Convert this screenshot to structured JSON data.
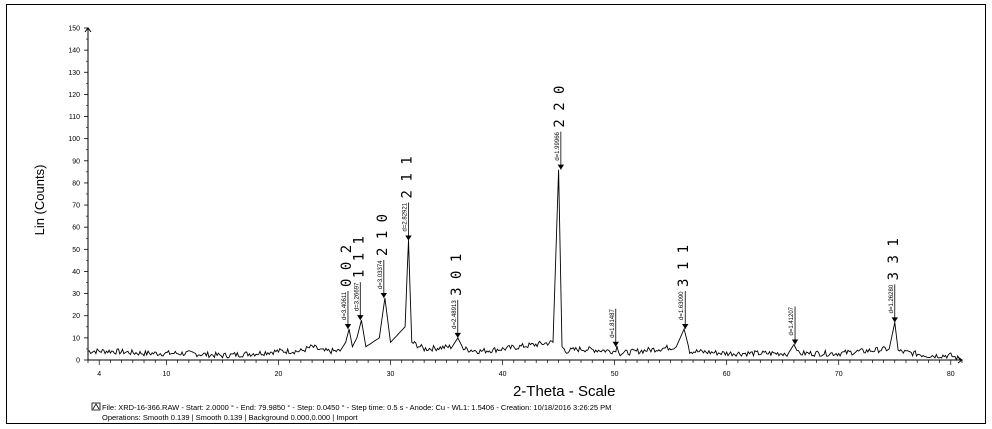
{
  "chart_data": {
    "type": "line",
    "xlabel": "2-Theta - Scale",
    "ylabel": "Lin (Counts)",
    "xlim": [
      3,
      81
    ],
    "ylim": [
      0,
      150
    ],
    "x_ticks": [
      4,
      10,
      20,
      30,
      40,
      50,
      60,
      70,
      80
    ],
    "y_ticks": [
      0,
      10,
      20,
      30,
      40,
      50,
      60,
      70,
      80,
      90,
      100,
      110,
      120,
      130,
      140,
      150
    ],
    "baseline": 3,
    "series": [
      {
        "x": [
          3.0,
          5.0,
          8.0,
          12.0,
          15.0,
          18.0,
          20.0,
          22.0,
          23.0,
          24.0,
          25.5,
          26.0,
          26.3,
          26.6,
          27.0,
          27.4,
          27.8,
          29.0,
          29.5,
          30.0,
          31.3,
          31.6,
          31.9,
          33.0,
          35.5,
          36.0,
          36.5,
          38.0,
          40.0,
          44.5,
          45.0,
          45.3,
          45.6,
          47.0,
          50.0,
          50.2,
          50.5,
          55.5,
          56.2,
          56.7,
          60.0,
          65.5,
          66.0,
          66.4,
          70.0,
          74.5,
          75.0,
          75.3,
          78.0,
          80.0,
          81.0
        ],
        "y": [
          4,
          4,
          3,
          3,
          2,
          3,
          4,
          4,
          6,
          4,
          4,
          8,
          14,
          6,
          10,
          18,
          6,
          10,
          28,
          8,
          15,
          54,
          8,
          5,
          6,
          10,
          5,
          4,
          5,
          8,
          86,
          6,
          4,
          5,
          4,
          6,
          3,
          6,
          14,
          4,
          3,
          3,
          7,
          3,
          3,
          5,
          17,
          4,
          2,
          2,
          0
        ]
      }
    ],
    "peaks": [
      {
        "hkl": "0 0 2",
        "two_theta": 26.2,
        "counts": 14,
        "d": "d=3.40611"
      },
      {
        "hkl": "1 1 1",
        "two_theta": 27.3,
        "counts": 18,
        "d": "d=3.26697"
      },
      {
        "hkl": "2 1 0",
        "two_theta": 29.4,
        "counts": 28,
        "d": "d=3.03374"
      },
      {
        "hkl": "2 1 1",
        "two_theta": 31.6,
        "counts": 54,
        "d": "d=2.82921"
      },
      {
        "hkl": "3 0 1",
        "two_theta": 36.0,
        "counts": 10,
        "d": "d=2.48913"
      },
      {
        "hkl": "2 2 0",
        "two_theta": 45.2,
        "counts": 86,
        "d": "d=1.99966"
      },
      {
        "hkl": "",
        "two_theta": 50.1,
        "counts": 6,
        "d": "d=1.81487"
      },
      {
        "hkl": "3 1 1",
        "two_theta": 56.3,
        "counts": 14,
        "d": "d=1.63090"
      },
      {
        "hkl": "",
        "two_theta": 66.1,
        "counts": 7,
        "d": "d=1.41207"
      },
      {
        "hkl": "3 3 1",
        "two_theta": 75.0,
        "counts": 17,
        "d": "d=1.26280"
      }
    ]
  },
  "footer": {
    "file_line": "File: XRD-16-366.RAW - Start: 2.0000 ° - End: 79.9850 ° - Step: 0.0450 ° - Step time: 0.5 s - Anode: Cu - WL1: 1.5406 - Creation: 10/18/2016 3:26:25 PM",
    "operations_line": "Operations: Smooth 0.139 | Smooth 0.139 | Background 0.000,0.000 | Import"
  }
}
